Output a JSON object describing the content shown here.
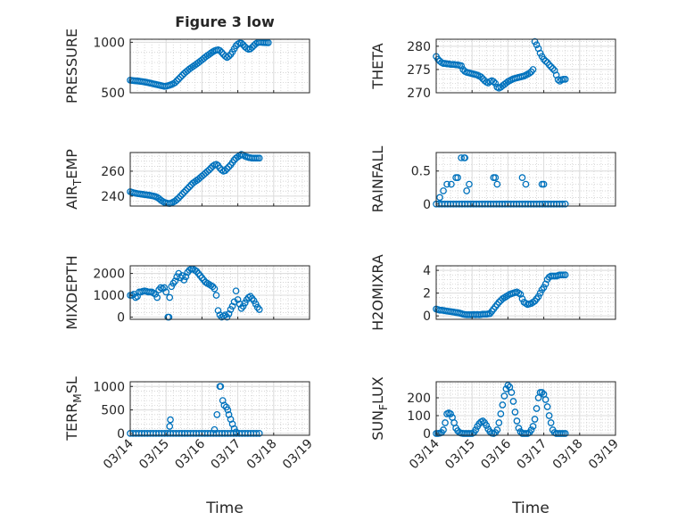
{
  "figure": {
    "title": "Figure 3 low",
    "xlabel": "Time",
    "x_tick_labels": [
      "03/14",
      "03/15",
      "03/16",
      "03/17",
      "03/18",
      "03/19"
    ],
    "marker_color": "#0072BD"
  },
  "chart_data": [
    {
      "type": "scatter",
      "ylabel": "PRESSURE",
      "ylabel_sub": "",
      "ylabel_sub_pos": 0,
      "yticks": [
        500,
        1000
      ],
      "ylim": [
        500,
        1030
      ],
      "xlim": [
        0,
        5
      ],
      "grid": true,
      "x": [
        0,
        0.05,
        0.1,
        0.15,
        0.2,
        0.25,
        0.3,
        0.35,
        0.4,
        0.45,
        0.5,
        0.55,
        0.6,
        0.65,
        0.7,
        0.75,
        0.8,
        0.85,
        0.9,
        0.95,
        1.0,
        1.05,
        1.1,
        1.15,
        1.2,
        1.25,
        1.3,
        1.35,
        1.4,
        1.45,
        1.5,
        1.55,
        1.6,
        1.65,
        1.7,
        1.75,
        1.8,
        1.85,
        1.9,
        1.95,
        2.0,
        2.05,
        2.1,
        2.15,
        2.2,
        2.25,
        2.3,
        2.35,
        2.4,
        2.45,
        2.5,
        2.55,
        2.6,
        2.65,
        2.7,
        2.75,
        2.8,
        2.85,
        2.9,
        2.95,
        3.0,
        3.05,
        3.1,
        3.15,
        3.2,
        3.25,
        3.3,
        3.35,
        3.4,
        3.45,
        3.5,
        3.55,
        3.6,
        3.65,
        3.7,
        3.75,
        3.8,
        3.85
      ],
      "y": [
        625,
        622,
        620,
        618,
        617,
        615,
        612,
        610,
        607,
        604,
        600,
        596,
        592,
        588,
        584,
        580,
        576,
        572,
        568,
        564,
        565,
        570,
        575,
        582,
        590,
        600,
        618,
        636,
        654,
        672,
        690,
        706,
        720,
        735,
        748,
        760,
        772,
        785,
        798,
        812,
        825,
        840,
        855,
        868,
        880,
        893,
        905,
        915,
        922,
        925,
        918,
        900,
        880,
        862,
        850,
        862,
        880,
        905,
        935,
        965,
        982,
        992,
        990,
        975,
        955,
        940,
        930,
        935,
        950,
        968,
        985,
        996,
        1000,
        1000,
        998,
        997,
        996,
        996
      ]
    },
    {
      "type": "scatter",
      "ylabel": "THETA",
      "ylabel_sub": "",
      "ylabel_sub_pos": 0,
      "yticks": [
        270,
        275,
        280
      ],
      "ylim": [
        270,
        281.5
      ],
      "xlim": [
        0,
        5
      ],
      "grid": true,
      "x": [
        0,
        0.05,
        0.1,
        0.15,
        0.2,
        0.25,
        0.3,
        0.35,
        0.4,
        0.45,
        0.5,
        0.55,
        0.6,
        0.65,
        0.7,
        0.75,
        0.8,
        0.85,
        0.9,
        0.95,
        1.0,
        1.05,
        1.1,
        1.15,
        1.2,
        1.25,
        1.3,
        1.35,
        1.4,
        1.45,
        1.5,
        1.55,
        1.6,
        1.65,
        1.7,
        1.75,
        1.8,
        1.85,
        1.9,
        1.95,
        2.0,
        2.05,
        2.1,
        2.15,
        2.2,
        2.25,
        2.3,
        2.35,
        2.4,
        2.45,
        2.5,
        2.55,
        2.6,
        2.65,
        2.7,
        2.75,
        2.8,
        2.85,
        2.9,
        2.95,
        3.0,
        3.05,
        3.1,
        3.15,
        3.2,
        3.25,
        3.3,
        3.35,
        3.4,
        3.45,
        3.5,
        3.55,
        3.6
      ],
      "y": [
        277.8,
        277.2,
        276.8,
        276.5,
        276.3,
        276.3,
        276.2,
        276.2,
        276.1,
        276.1,
        276.1,
        276.0,
        276.0,
        275.9,
        275.8,
        275.0,
        274.6,
        274.4,
        274.3,
        274.2,
        274.1,
        274.0,
        273.9,
        273.8,
        273.6,
        273.4,
        273.0,
        272.6,
        272.3,
        272.1,
        272.4,
        272.6,
        272.4,
        272.0,
        271.2,
        271.0,
        271.2,
        271.5,
        271.8,
        272.1,
        272.4,
        272.6,
        272.8,
        273.0,
        273.1,
        273.2,
        273.3,
        273.4,
        273.5,
        273.6,
        273.8,
        274.0,
        274.2,
        274.5,
        275.0,
        281.0,
        280.3,
        279.5,
        278.5,
        277.8,
        277.2,
        276.8,
        276.5,
        276.0,
        275.6,
        275.2,
        274.8,
        273.8,
        272.8,
        272.5,
        272.8,
        272.9,
        272.9
      ]
    },
    {
      "type": "scatter",
      "ylabel": "AIR",
      "ylabel_sub": "T",
      "ylabel_sub_pos": 3,
      "ylabel_rest": "EMP",
      "yticks": [
        240,
        260
      ],
      "ylim": [
        232,
        275
      ],
      "xlim": [
        0,
        5
      ],
      "grid": true,
      "x": [
        0,
        0.05,
        0.1,
        0.15,
        0.2,
        0.25,
        0.3,
        0.35,
        0.4,
        0.45,
        0.5,
        0.55,
        0.6,
        0.65,
        0.7,
        0.75,
        0.8,
        0.85,
        0.9,
        0.95,
        1.0,
        1.05,
        1.1,
        1.15,
        1.2,
        1.25,
        1.3,
        1.35,
        1.4,
        1.45,
        1.5,
        1.55,
        1.6,
        1.65,
        1.7,
        1.75,
        1.8,
        1.85,
        1.9,
        1.95,
        2.0,
        2.05,
        2.1,
        2.15,
        2.2,
        2.25,
        2.3,
        2.35,
        2.4,
        2.45,
        2.5,
        2.55,
        2.6,
        2.65,
        2.7,
        2.75,
        2.8,
        2.85,
        2.9,
        2.95,
        3.0,
        3.05,
        3.1,
        3.15,
        3.2,
        3.25,
        3.3,
        3.35,
        3.4,
        3.45,
        3.5,
        3.55,
        3.6
      ],
      "y": [
        243.5,
        243.0,
        242.6,
        242.3,
        242.0,
        241.8,
        241.6,
        241.4,
        241.2,
        241.0,
        240.8,
        240.6,
        240.3,
        240.0,
        239.6,
        239.0,
        238.0,
        236.8,
        235.8,
        235.0,
        234.5,
        234.2,
        234.0,
        234.5,
        235.2,
        236.0,
        237.2,
        238.5,
        240.0,
        241.5,
        243.0,
        244.5,
        246.0,
        247.5,
        249.0,
        250.5,
        251.5,
        252.5,
        253.5,
        254.8,
        256.0,
        257.2,
        258.5,
        259.8,
        261.0,
        262.5,
        264.0,
        265.0,
        265.5,
        264.5,
        262.5,
        261.0,
        260.0,
        260.5,
        262.0,
        263.5,
        265.0,
        267.0,
        269.0,
        270.5,
        271.5,
        272.5,
        273.5,
        273.0,
        272.0,
        271.5,
        271.0,
        270.8,
        270.5,
        270.5,
        270.5,
        270.5,
        270.5
      ]
    },
    {
      "type": "scatter",
      "ylabel": "RAINFALL",
      "ylabel_sub": "",
      "ylabel_sub_pos": 0,
      "yticks": [
        0,
        0.5
      ],
      "ylim": [
        -0.03,
        0.78
      ],
      "xlim": [
        0,
        5
      ],
      "grid": true,
      "x": [
        0,
        0.08,
        0.16,
        0.24,
        0.32,
        0.4,
        0.48,
        0.56,
        0.64,
        0.72,
        0.8,
        0.88,
        0.96,
        1.04,
        1.12,
        1.2,
        1.28,
        1.36,
        1.44,
        1.52,
        1.6,
        1.68,
        1.76,
        1.84,
        1.92,
        2.0,
        2.08,
        2.16,
        2.24,
        2.32,
        2.4,
        2.48,
        2.56,
        2.64,
        2.72,
        2.8,
        2.88,
        2.96,
        3.04,
        3.12,
        3.2,
        3.28,
        3.36,
        3.44,
        3.52,
        3.6,
        0.1,
        0.2,
        0.3,
        0.42,
        0.55,
        0.6,
        0.7,
        0.78,
        0.8,
        0.85,
        0.92,
        1.6,
        1.65,
        1.7,
        2.4,
        2.5,
        2.95,
        3.0
      ],
      "y": [
        0,
        0,
        0,
        0,
        0,
        0,
        0,
        0,
        0,
        0,
        0,
        0,
        0,
        0,
        0,
        0,
        0,
        0,
        0,
        0,
        0,
        0,
        0,
        0,
        0,
        0,
        0,
        0,
        0,
        0,
        0,
        0,
        0,
        0,
        0,
        0,
        0,
        0,
        0,
        0,
        0,
        0,
        0,
        0,
        0,
        0,
        0.1,
        0.2,
        0.3,
        0.3,
        0.4,
        0.4,
        0.7,
        0.7,
        0.7,
        0.2,
        0.3,
        0.4,
        0.4,
        0.3,
        0.4,
        0.3,
        0.3,
        0.3
      ]
    },
    {
      "type": "scatter",
      "ylabel": "MIXDEPTH",
      "ylabel_sub": "",
      "ylabel_sub_pos": 0,
      "yticks": [
        0,
        1000,
        2000
      ],
      "ylim": [
        -100,
        2350
      ],
      "xlim": [
        0,
        5
      ],
      "grid": true,
      "x": [
        0,
        0.05,
        0.1,
        0.15,
        0.2,
        0.25,
        0.3,
        0.35,
        0.4,
        0.45,
        0.5,
        0.55,
        0.6,
        0.65,
        0.7,
        0.75,
        0.8,
        0.85,
        0.9,
        0.95,
        1.0,
        1.05,
        1.08,
        1.1,
        1.15,
        1.2,
        1.25,
        1.3,
        1.35,
        1.4,
        1.45,
        1.5,
        1.55,
        1.6,
        1.65,
        1.7,
        1.75,
        1.8,
        1.85,
        1.9,
        1.95,
        2.0,
        2.05,
        2.1,
        2.15,
        2.2,
        2.25,
        2.3,
        2.35,
        2.4,
        2.45,
        2.5,
        2.55,
        2.6,
        2.65,
        2.7,
        2.75,
        2.8,
        2.85,
        2.9,
        2.95,
        3.0,
        3.05,
        3.1,
        3.15,
        3.2,
        3.25,
        3.3,
        3.35,
        3.4,
        3.45,
        3.5,
        3.55,
        3.6
      ],
      "y": [
        1000,
        1000,
        1050,
        900,
        950,
        1150,
        1150,
        1180,
        1200,
        1180,
        1150,
        1150,
        1150,
        1100,
        1050,
        900,
        1250,
        1350,
        1300,
        1350,
        1150,
        0,
        0,
        900,
        1400,
        1550,
        1650,
        1850,
        2000,
        1800,
        1900,
        1700,
        1850,
        2050,
        2150,
        2200,
        2200,
        2150,
        2100,
        2000,
        1900,
        1800,
        1700,
        1600,
        1550,
        1500,
        1450,
        1400,
        1300,
        1000,
        300,
        100,
        0,
        50,
        100,
        0,
        150,
        350,
        500,
        700,
        1200,
        800,
        600,
        400,
        500,
        650,
        800,
        900,
        950,
        850,
        750,
        600,
        450,
        350
      ]
    },
    {
      "type": "scatter",
      "ylabel": "H2OMIXRA",
      "ylabel_sub": "",
      "ylabel_sub_pos": 0,
      "yticks": [
        0,
        2,
        4
      ],
      "ylim": [
        -0.3,
        4.4
      ],
      "xlim": [
        0,
        5
      ],
      "grid": true,
      "x": [
        0,
        0.05,
        0.1,
        0.15,
        0.2,
        0.25,
        0.3,
        0.35,
        0.4,
        0.45,
        0.5,
        0.55,
        0.6,
        0.65,
        0.7,
        0.75,
        0.8,
        0.85,
        0.9,
        0.95,
        1.0,
        1.05,
        1.1,
        1.15,
        1.2,
        1.25,
        1.3,
        1.35,
        1.4,
        1.45,
        1.5,
        1.55,
        1.6,
        1.65,
        1.7,
        1.75,
        1.8,
        1.85,
        1.9,
        1.95,
        2.0,
        2.05,
        2.1,
        2.15,
        2.2,
        2.25,
        2.3,
        2.35,
        2.4,
        2.45,
        2.5,
        2.55,
        2.6,
        2.65,
        2.7,
        2.75,
        2.8,
        2.85,
        2.9,
        2.95,
        3.0,
        3.05,
        3.1,
        3.15,
        3.2,
        3.25,
        3.3,
        3.35,
        3.4,
        3.45,
        3.5,
        3.55,
        3.6
      ],
      "y": [
        0.6,
        0.55,
        0.5,
        0.5,
        0.48,
        0.45,
        0.42,
        0.4,
        0.38,
        0.35,
        0.33,
        0.3,
        0.28,
        0.25,
        0.2,
        0.15,
        0.12,
        0.1,
        0.1,
        0.1,
        0.1,
        0.12,
        0.1,
        0.12,
        0.1,
        0.12,
        0.15,
        0.15,
        0.15,
        0.18,
        0.2,
        0.4,
        0.6,
        0.8,
        1.0,
        1.2,
        1.35,
        1.5,
        1.6,
        1.7,
        1.8,
        1.9,
        1.95,
        2.0,
        2.05,
        2.1,
        2.0,
        1.9,
        1.5,
        1.2,
        1.1,
        1.0,
        1.05,
        1.1,
        1.2,
        1.3,
        1.5,
        1.7,
        2.0,
        2.3,
        2.5,
        2.8,
        3.2,
        3.4,
        3.5,
        3.5,
        3.5,
        3.5,
        3.55,
        3.6,
        3.6,
        3.6,
        3.6
      ]
    },
    {
      "type": "scatter",
      "ylabel": "TERR",
      "ylabel_sub": "M",
      "ylabel_sub_pos": 4,
      "ylabel_rest": "SL",
      "yticks": [
        0,
        500,
        1000
      ],
      "ylim": [
        -40,
        1100
      ],
      "xlim": [
        0,
        5
      ],
      "grid": true,
      "x": [
        0,
        0.08,
        0.16,
        0.24,
        0.32,
        0.4,
        0.48,
        0.56,
        0.64,
        0.72,
        0.8,
        0.88,
        0.96,
        1.04,
        1.12,
        1.2,
        1.28,
        1.36,
        1.44,
        1.52,
        1.6,
        1.68,
        1.76,
        1.84,
        1.92,
        2.0,
        2.08,
        2.16,
        2.24,
        2.32,
        2.4,
        2.48,
        2.56,
        2.64,
        2.72,
        2.8,
        2.88,
        2.96,
        3.04,
        3.12,
        3.2,
        3.28,
        3.36,
        3.44,
        3.52,
        3.6,
        1.1,
        1.12,
        2.35,
        2.42,
        2.5,
        2.52,
        2.58,
        2.62,
        2.68,
        2.72,
        2.75,
        2.8,
        2.85,
        2.9,
        2.95
      ],
      "y": [
        0,
        0,
        0,
        0,
        0,
        0,
        0,
        0,
        0,
        0,
        0,
        0,
        0,
        0,
        0,
        0,
        0,
        0,
        0,
        0,
        0,
        0,
        0,
        0,
        0,
        0,
        0,
        0,
        0,
        0,
        0,
        0,
        0,
        0,
        0,
        0,
        0,
        0,
        0,
        0,
        0,
        0,
        0,
        0,
        0,
        0,
        150,
        290,
        80,
        400,
        1000,
        1000,
        700,
        600,
        560,
        500,
        400,
        300,
        200,
        100,
        30
      ]
    },
    {
      "type": "scatter",
      "ylabel": "SUN",
      "ylabel_sub": "F",
      "ylabel_sub_pos": 3,
      "ylabel_rest": "LUX",
      "yticks": [
        0,
        100,
        200
      ],
      "ylim": [
        -10,
        290
      ],
      "xlim": [
        0,
        5
      ],
      "grid": true,
      "x": [
        0,
        0.05,
        0.1,
        0.15,
        0.2,
        0.25,
        0.3,
        0.35,
        0.4,
        0.45,
        0.5,
        0.55,
        0.6,
        0.65,
        0.7,
        0.75,
        0.8,
        0.85,
        0.9,
        0.95,
        1.0,
        1.05,
        1.1,
        1.15,
        1.2,
        1.25,
        1.3,
        1.35,
        1.4,
        1.45,
        1.5,
        1.55,
        1.6,
        1.65,
        1.7,
        1.75,
        1.8,
        1.85,
        1.9,
        1.95,
        2.0,
        2.05,
        2.1,
        2.15,
        2.2,
        2.25,
        2.3,
        2.35,
        2.4,
        2.45,
        2.5,
        2.55,
        2.6,
        2.65,
        2.7,
        2.75,
        2.8,
        2.85,
        2.9,
        2.95,
        3.0,
        3.05,
        3.1,
        3.15,
        3.2,
        3.25,
        3.3,
        3.35,
        3.4,
        3.45,
        3.5,
        3.55,
        3.6
      ],
      "y": [
        0,
        0,
        2,
        5,
        20,
        60,
        110,
        115,
        110,
        90,
        60,
        30,
        15,
        5,
        2,
        0,
        0,
        0,
        0,
        0,
        0,
        5,
        20,
        40,
        55,
        65,
        70,
        60,
        45,
        25,
        10,
        2,
        0,
        5,
        20,
        60,
        110,
        160,
        210,
        250,
        270,
        260,
        230,
        180,
        120,
        70,
        30,
        10,
        0,
        0,
        0,
        0,
        5,
        20,
        40,
        80,
        140,
        200,
        230,
        230,
        220,
        190,
        150,
        100,
        60,
        20,
        5,
        0,
        0,
        0,
        0,
        0,
        0
      ]
    }
  ]
}
